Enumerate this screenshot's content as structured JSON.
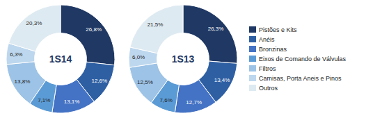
{
  "chart_data": {
    "type": "pie",
    "categories": [
      "Pistões e Kits",
      "Anéis",
      "Bronzinas",
      "Eixos de Comando de Válvulas",
      "Filtros",
      "Camisas, Porta Aneis e Pinos",
      "Outros"
    ],
    "colors": [
      "#1F3864",
      "#2E5FA3",
      "#4472C4",
      "#5B9BD5",
      "#9DC3E6",
      "#BDD7EE",
      "#DEEAF1"
    ],
    "series": [
      {
        "name": "1S14",
        "values": [
          26.8,
          12.6,
          13.1,
          7.1,
          13.8,
          6.3,
          20.3
        ],
        "value_labels": [
          "26,8%",
          "12,6%",
          "13,1%",
          "7,1%",
          "13,8%",
          "6,3%",
          "20,3%"
        ]
      },
      {
        "name": "1S13",
        "values": [
          26.3,
          13.4,
          12.7,
          7.6,
          12.5,
          6.0,
          21.5
        ],
        "value_labels": [
          "26,3%",
          "13,4%",
          "12,7%",
          "7,6%",
          "12,5%",
          "6,0%",
          "21,5%"
        ]
      }
    ],
    "data_labels": true,
    "legend": "right"
  }
}
